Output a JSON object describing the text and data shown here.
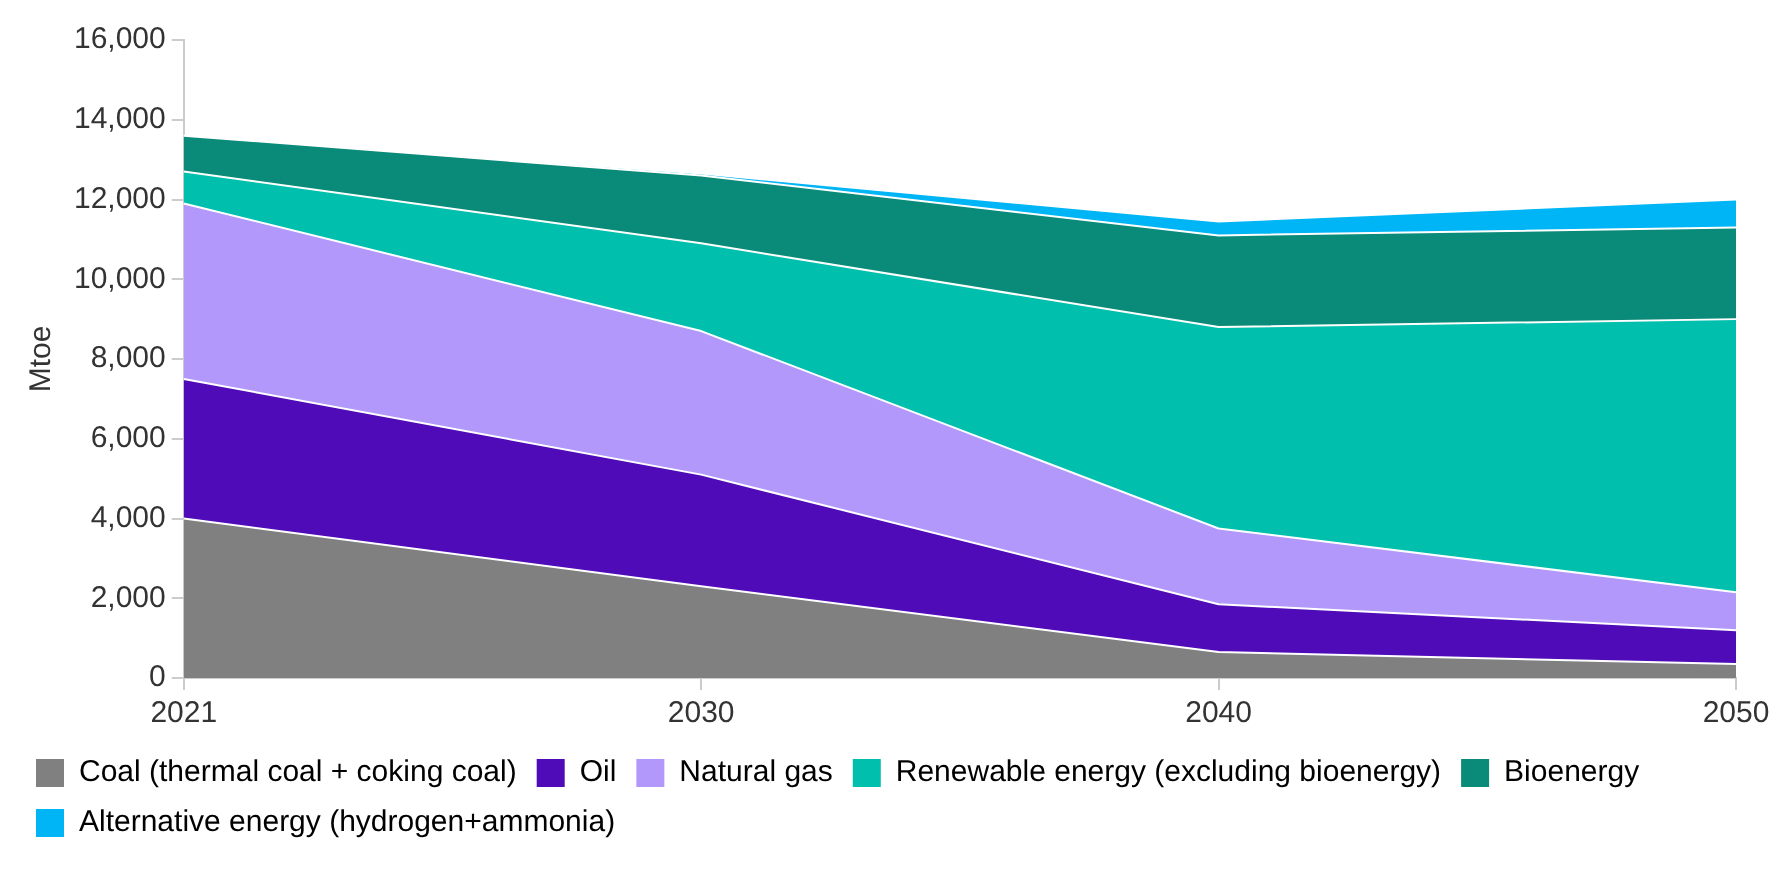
{
  "chart_data": {
    "type": "area",
    "stacked": true,
    "ylabel": "Mtoe",
    "categories": [
      "2021",
      "2030",
      "2040",
      "2050"
    ],
    "series": [
      {
        "name": "Coal (thermal coal + coking coal)",
        "color": "#808080",
        "values": [
          4000,
          2300,
          650,
          350
        ]
      },
      {
        "name": "Oil",
        "color": "#4f0bb7",
        "values": [
          3500,
          2800,
          1200,
          850
        ]
      },
      {
        "name": "Natural gas",
        "color": "#b398fb",
        "values": [
          4400,
          3600,
          1900,
          950
        ]
      },
      {
        "name": "Renewable energy (excluding bioenergy)",
        "color": "#00bfad",
        "values": [
          800,
          2200,
          5050,
          6850
        ]
      },
      {
        "name": "Bioenergy",
        "color": "#0a8a78",
        "values": [
          900,
          1700,
          2300,
          2300
        ]
      },
      {
        "name": "Alternative energy (hydrogen+ammonia)",
        "color": "#00b5f5",
        "values": [
          0,
          50,
          350,
          700
        ]
      }
    ],
    "ylim": [
      0,
      16000
    ],
    "yticks": [
      0,
      {
        "value": 2000,
        "label": "2,000"
      },
      {
        "value": 4000,
        "label": "4,000"
      },
      {
        "value": 6000,
        "label": "6,000"
      },
      {
        "value": 8000,
        "label": "8,000"
      },
      {
        "value": 10000,
        "label": "10,000"
      },
      {
        "value": 12000,
        "label": "12,000"
      },
      {
        "value": 14000,
        "label": "14,000"
      },
      {
        "value": 16000,
        "label": "16,000"
      }
    ],
    "grid": false,
    "legend": "bottom"
  }
}
